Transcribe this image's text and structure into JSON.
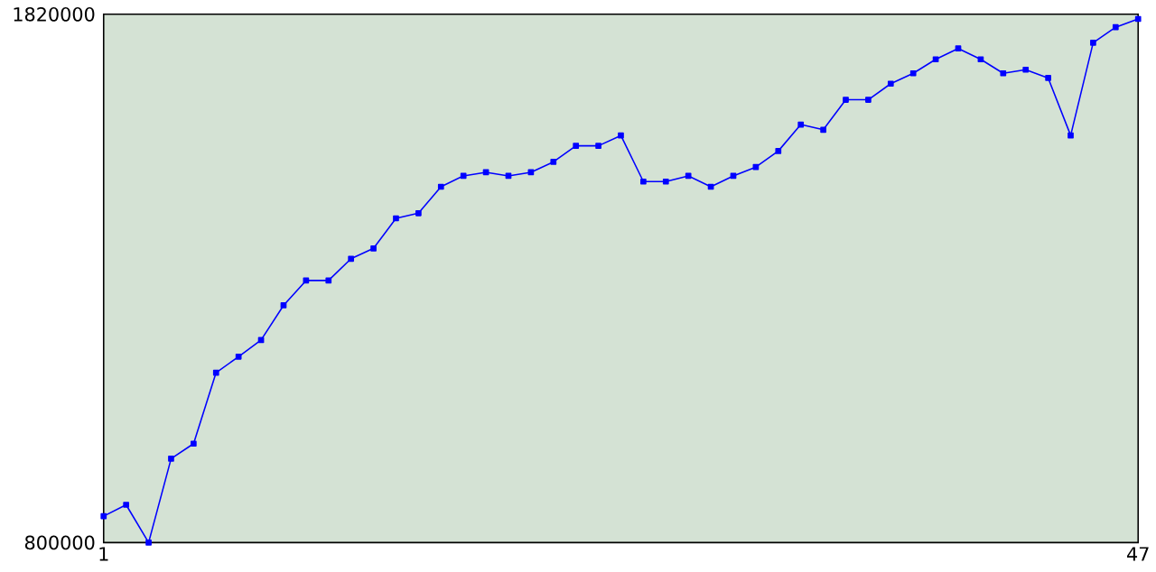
{
  "chart_data": {
    "type": "line",
    "marker": "square",
    "line_style": "solid",
    "x": [
      1,
      2,
      3,
      4,
      5,
      6,
      7,
      8,
      9,
      10,
      11,
      12,
      13,
      14,
      15,
      16,
      17,
      18,
      19,
      20,
      21,
      22,
      23,
      24,
      25,
      26,
      27,
      28,
      29,
      30,
      31,
      32,
      33,
      34,
      35,
      36,
      37,
      38,
      39,
      40,
      41,
      42,
      43,
      44,
      45,
      46,
      47
    ],
    "series": [
      {
        "color": "#0000ff",
        "values": [
          851000,
          873000,
          800000,
          962000,
          991000,
          1128000,
          1159000,
          1191000,
          1258000,
          1306000,
          1306000,
          1348000,
          1368000,
          1426000,
          1436000,
          1487000,
          1508000,
          1515000,
          1508000,
          1515000,
          1535000,
          1566000,
          1566000,
          1586000,
          1497000,
          1497000,
          1508000,
          1487000,
          1508000,
          1525000,
          1556000,
          1607000,
          1597000,
          1655000,
          1655000,
          1686000,
          1706000,
          1733000,
          1754000,
          1733000,
          1706000,
          1713000,
          1697000,
          1586000,
          1765000,
          1795000,
          1811000
        ]
      }
    ],
    "xlim": [
      1,
      47
    ],
    "xticks": [
      1,
      47
    ],
    "ylim": [
      800000,
      1820000
    ],
    "yticks": [
      800000,
      1820000
    ]
  }
}
